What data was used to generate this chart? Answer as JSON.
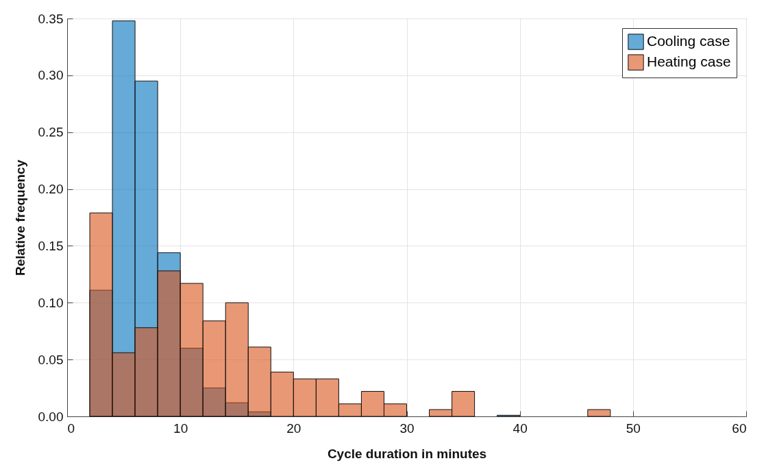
{
  "chart_data": {
    "type": "histogram",
    "xlabel": "Cycle duration in minutes",
    "ylabel": "Relative frequency",
    "bins": [
      2,
      4,
      6,
      8,
      10,
      12,
      14,
      16,
      18,
      20,
      22,
      24,
      26,
      28,
      30,
      32,
      34,
      36,
      38,
      40,
      42,
      44,
      46,
      48
    ],
    "series": [
      {
        "name": "Cooling case",
        "color": "#0072bd",
        "values": [
          0.111,
          0.348,
          0.295,
          0.144,
          0.06,
          0.025,
          0.012,
          0.004,
          null,
          0,
          0,
          0,
          0,
          0,
          0,
          0,
          0,
          0,
          0.001,
          0,
          0,
          0,
          0
        ]
      },
      {
        "name": "Heating case",
        "color": "#d95319",
        "values": [
          0.179,
          0.056,
          0.078,
          0.128,
          0.117,
          0.084,
          0.1,
          0.061,
          0.039,
          0.033,
          0.033,
          0.011,
          0.022,
          0.011,
          0,
          0.006,
          0.022,
          0,
          0,
          0,
          0,
          0,
          0.006
        ]
      }
    ],
    "xlim": [
      0,
      60
    ],
    "xticks": [
      0,
      10,
      20,
      30,
      40,
      50,
      60
    ],
    "ylim": [
      0,
      0.35
    ],
    "yticks": [
      {
        "value": 0,
        "label": "0.00"
      },
      {
        "value": 0.05,
        "label": "0.05"
      },
      {
        "value": 0.1,
        "label": "0.10"
      },
      {
        "value": 0.15,
        "label": "0.15"
      },
      {
        "value": 0.2,
        "label": "0.20"
      },
      {
        "value": 0.25,
        "label": "0.25"
      },
      {
        "value": 0.3,
        "label": "0.30"
      },
      {
        "value": 0.35,
        "label": "0.35"
      }
    ],
    "grid": true,
    "legend": "top right"
  }
}
